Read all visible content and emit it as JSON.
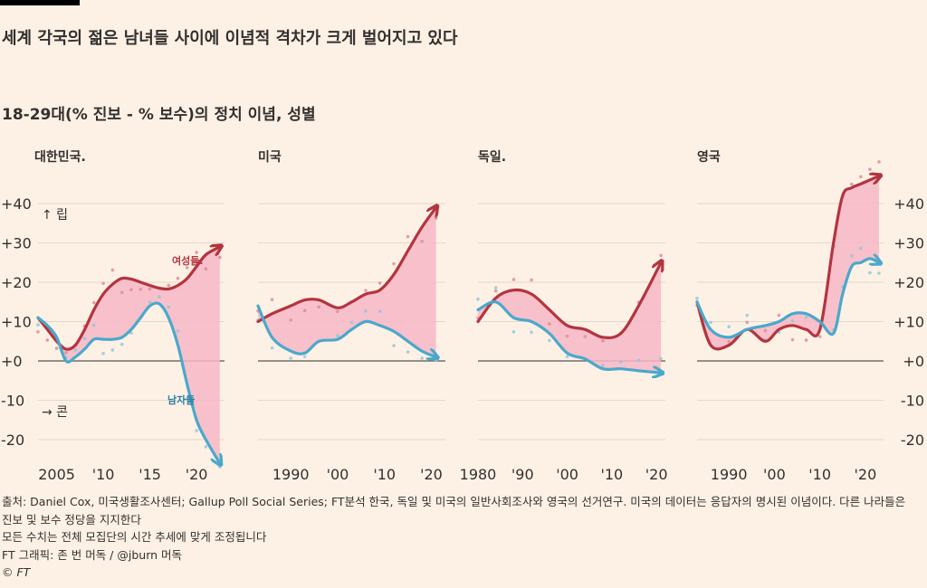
{
  "headline": "세계 각국의 젊은 남녀들 사이에 이념적 격차가 크게 벌어지고 있다",
  "subheadline": "18-29대(% 진보 - % 보수)의 정치 이념, 성별",
  "annotations": {
    "up_label": "↑ 립",
    "down_label": "→ 콘",
    "women_label": "여성들.",
    "men_label": "남자들"
  },
  "colors": {
    "women": "#b3343f",
    "men": "#4aa8cc",
    "gap_fill": "#f7b7c5",
    "women_dots": "#d98a93",
    "men_dots": "#8cc6dc",
    "zero_line": "#555555",
    "grid": "#e4d8cc",
    "text": "#33302e"
  },
  "chart_data": [
    {
      "type": "line",
      "country": "대한민국.",
      "xlim": [
        2003,
        2023
      ],
      "ylim": [
        -25,
        45
      ],
      "yticks": [
        40,
        30,
        20,
        10,
        0,
        -10,
        -20
      ],
      "ytick_labels": [
        "+40",
        "+30",
        "+20",
        "+10",
        "+0",
        "-10",
        "-20"
      ],
      "xticks": [
        2005,
        2010,
        2015,
        2020
      ],
      "xtick_labels": [
        "2005",
        "'10",
        "'15",
        "'20"
      ],
      "series": [
        {
          "name": "여성들",
          "x": [
            2003,
            2004,
            2005,
            2006,
            2007,
            2008,
            2009,
            2010,
            2011,
            2012,
            2013,
            2014,
            2015,
            2016,
            2017,
            2018,
            2019,
            2020,
            2021,
            2022.5
          ],
          "values": [
            11,
            8,
            5,
            3,
            4,
            8,
            13,
            17,
            19.5,
            21,
            20.8,
            20,
            19.2,
            18.5,
            18.3,
            19.2,
            21,
            24,
            27,
            29
          ]
        },
        {
          "name": "남자들",
          "x": [
            2003,
            2004,
            2005,
            2006,
            2007,
            2008,
            2009,
            2010,
            2011,
            2012,
            2013,
            2014,
            2015,
            2016,
            2017,
            2018,
            2019,
            2020,
            2021,
            2022.5
          ],
          "values": [
            11,
            9,
            6,
            0,
            1,
            3,
            5.5,
            5.5,
            5.5,
            6,
            8,
            11,
            14,
            14.5,
            11,
            4,
            -6,
            -15,
            -20,
            -26
          ]
        }
      ]
    },
    {
      "type": "line",
      "country": "미국",
      "xlim": [
        1983,
        2023
      ],
      "ylim": [
        -25,
        45
      ],
      "xticks": [
        1990,
        2000,
        2010,
        2020
      ],
      "xtick_labels": [
        "1990",
        "'00",
        "'10",
        "'20"
      ],
      "series": [
        {
          "name": "여성들",
          "x": [
            1983,
            1986,
            1990,
            1993,
            1996,
            2000,
            2003,
            2006,
            2009,
            2012,
            2015,
            2018,
            2021
          ],
          "values": [
            10,
            12,
            14,
            15.5,
            15.5,
            13.5,
            15,
            17,
            18,
            22,
            28,
            34,
            39
          ]
        },
        {
          "name": "남자들",
          "x": [
            1983,
            1986,
            1990,
            1993,
            1996,
            2000,
            2003,
            2006,
            2009,
            2012,
            2015,
            2018,
            2021
          ],
          "values": [
            14,
            6,
            2.5,
            2,
            5,
            5.5,
            8,
            10,
            9,
            7.5,
            5,
            2.5,
            1
          ]
        }
      ]
    },
    {
      "type": "line",
      "country": "독일.",
      "xlim": [
        1980,
        2022
      ],
      "ylim": [
        -25,
        45
      ],
      "xticks": [
        1980,
        1990,
        2000,
        2010,
        2020
      ],
      "xtick_labels": [
        "1980",
        "'90",
        "'00",
        "'10",
        "'20"
      ],
      "series": [
        {
          "name": "여성들",
          "x": [
            1980,
            1984,
            1988,
            1992,
            1996,
            2000,
            2004,
            2008,
            2012,
            2016,
            2021
          ],
          "values": [
            10,
            16,
            18,
            17,
            13,
            9,
            8,
            6,
            7,
            14,
            25
          ]
        },
        {
          "name": "남자들",
          "x": [
            1980,
            1984,
            1988,
            1992,
            1996,
            2000,
            2004,
            2008,
            2012,
            2016,
            2021
          ],
          "values": [
            13,
            15,
            11,
            10,
            7,
            2,
            0.5,
            -2,
            -2,
            -2.5,
            -3
          ]
        }
      ]
    },
    {
      "type": "line",
      "country": "영국",
      "xlim": [
        1983,
        2024
      ],
      "ylim": [
        -25,
        45
      ],
      "yticks": [
        40,
        30,
        20,
        10,
        0,
        -10,
        -20
      ],
      "ytick_labels": [
        "+40",
        "+30",
        "+20",
        "+10",
        "+0",
        "-10",
        "-20"
      ],
      "xticks": [
        1990,
        2000,
        2010,
        2020
      ],
      "xtick_labels": [
        "1990",
        "'00",
        "'10",
        "'20"
      ],
      "series": [
        {
          "name": "여성들",
          "x": [
            1983,
            1986,
            1990,
            1994,
            1998,
            2001,
            2004,
            2007,
            2010,
            2013,
            2015,
            2017,
            2019,
            2021,
            2023
          ],
          "values": [
            15,
            4,
            4,
            8,
            5,
            8,
            9,
            8,
            8,
            30,
            42,
            44,
            45,
            46,
            47
          ]
        },
        {
          "name": "남자들",
          "x": [
            1983,
            1986,
            1990,
            1994,
            1998,
            2001,
            2004,
            2007,
            2010,
            2013,
            2015,
            2017,
            2019,
            2021,
            2023
          ],
          "values": [
            15,
            8,
            6,
            8,
            9,
            10,
            12,
            12,
            10,
            7,
            17,
            24,
            25,
            26,
            25
          ]
        }
      ]
    }
  ],
  "footer": {
    "source": "출처: Daniel Cox, 미국생활조사센터; Gallup Poll Social Series; FT분석 한국, 독일 및 미국의 일반사회조사와 영국의 선거연구. 미국의 데이터는 응답자의 명시된 이념이다. 다른 나라들은 진보 및 보수 정당을 지지한다",
    "note": "모든 수치는 전체 모집단의 시간 추세에 맞게 조정됩니다",
    "credit": "FT 그래픽: 존 번 머독 / @jburn 머독",
    "copyright": "© FT"
  }
}
